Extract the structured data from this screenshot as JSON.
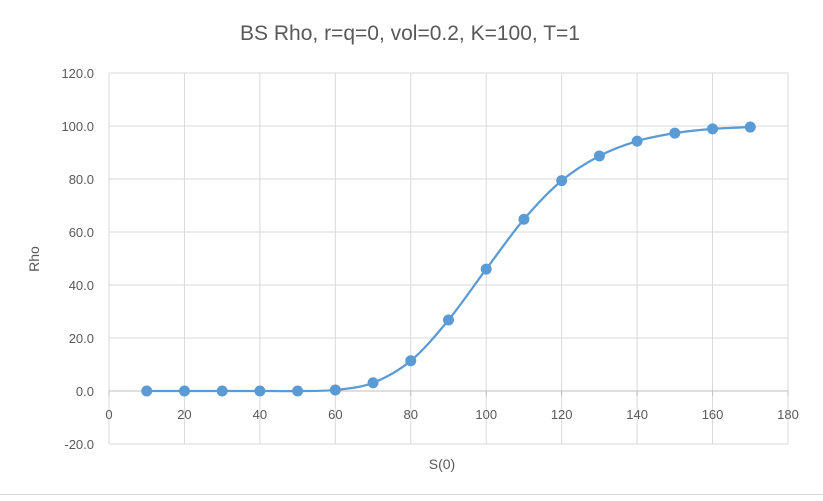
{
  "chart_data": {
    "type": "scatter",
    "title": "BS Rho, r=q=0, vol=0.2, K=100, T=1",
    "xlabel": "S(0)",
    "ylabel": "Rho",
    "xlim": [
      0,
      180
    ],
    "ylim": [
      -20,
      120
    ],
    "x_ticks": [
      0,
      20,
      40,
      60,
      80,
      100,
      120,
      140,
      160,
      180
    ],
    "y_ticks": [
      -20,
      0,
      20,
      40,
      60,
      80,
      100,
      120
    ],
    "y_tick_labels": [
      "-20.0",
      "0.0",
      "20.0",
      "40.0",
      "60.0",
      "80.0",
      "100.0",
      "120.0"
    ],
    "x_tick_labels": [
      "0",
      "20",
      "40",
      "60",
      "80",
      "100",
      "120",
      "140",
      "160",
      "180"
    ],
    "grid": true,
    "line_style": "smooth line with markers",
    "series": [
      {
        "color": "#5b9bd5",
        "x": [
          10,
          20,
          30,
          40,
          50,
          60,
          70,
          80,
          90,
          100,
          110,
          120,
          130,
          140,
          150,
          160,
          170
        ],
        "y": [
          0.0,
          0.0,
          0.0,
          0.0,
          0.0,
          0.4,
          3.1,
          11.4,
          26.8,
          46.0,
          64.8,
          79.4,
          88.7,
          94.3,
          97.3,
          98.9,
          99.6
        ]
      }
    ]
  }
}
